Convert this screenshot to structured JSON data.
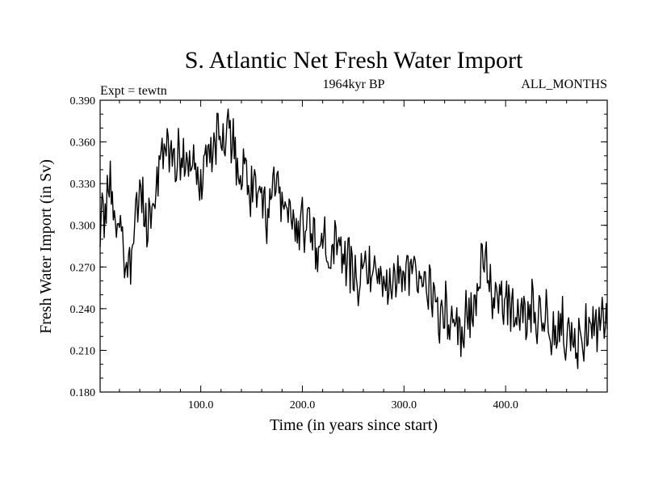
{
  "chart_data": {
    "type": "line",
    "title": "S. Atlantic Net Fresh Water Import",
    "subtitle": "1964kyr BP",
    "left_label": "Expt = tewtn",
    "right_label": "ALL_MONTHS",
    "xlabel": "Time (in years since start)",
    "ylabel": "Fresh Water Import (in Sv)",
    "xlim": [
      1,
      500
    ],
    "ylim": [
      0.18,
      0.39
    ],
    "xticks": [
      100,
      200,
      300,
      400
    ],
    "xtick_labels": [
      "100.0",
      "200.0",
      "300.0",
      "400.0"
    ],
    "yticks": [
      0.18,
      0.21,
      0.24,
      0.27,
      0.3,
      0.33,
      0.36,
      0.39
    ],
    "ytick_labels": [
      "0.180",
      "0.210",
      "0.240",
      "0.270",
      "0.300",
      "0.330",
      "0.360",
      "0.390"
    ],
    "line_color": "#000000",
    "series": [
      {
        "name": "S. Atlantic Net Fresh Water Import",
        "x_start": 1,
        "x_step": 5,
        "values": [
          0.3,
          0.318,
          0.327,
          0.305,
          0.298,
          0.275,
          0.262,
          0.318,
          0.322,
          0.305,
          0.305,
          0.328,
          0.348,
          0.355,
          0.35,
          0.352,
          0.35,
          0.345,
          0.348,
          0.34,
          0.335,
          0.338,
          0.352,
          0.36,
          0.37,
          0.368,
          0.362,
          0.348,
          0.34,
          0.33,
          0.322,
          0.315,
          0.31,
          0.305,
          0.32,
          0.325,
          0.315,
          0.308,
          0.3,
          0.298,
          0.302,
          0.298,
          0.296,
          0.285,
          0.292,
          0.28,
          0.285,
          0.278,
          0.272,
          0.27,
          0.265,
          0.262,
          0.26,
          0.265,
          0.262,
          0.262,
          0.26,
          0.26,
          0.262,
          0.26,
          0.265,
          0.262,
          0.258,
          0.26,
          0.258,
          0.255,
          0.24,
          0.238,
          0.242,
          0.235,
          0.23,
          0.228,
          0.232,
          0.235,
          0.24,
          0.27,
          0.275,
          0.255,
          0.248,
          0.245,
          0.248,
          0.24,
          0.238,
          0.235,
          0.235,
          0.24,
          0.232,
          0.232,
          0.235,
          0.228,
          0.222,
          0.225,
          0.225,
          0.218,
          0.21,
          0.222,
          0.23,
          0.225,
          0.22,
          0.228,
          0.225
        ]
      }
    ]
  }
}
